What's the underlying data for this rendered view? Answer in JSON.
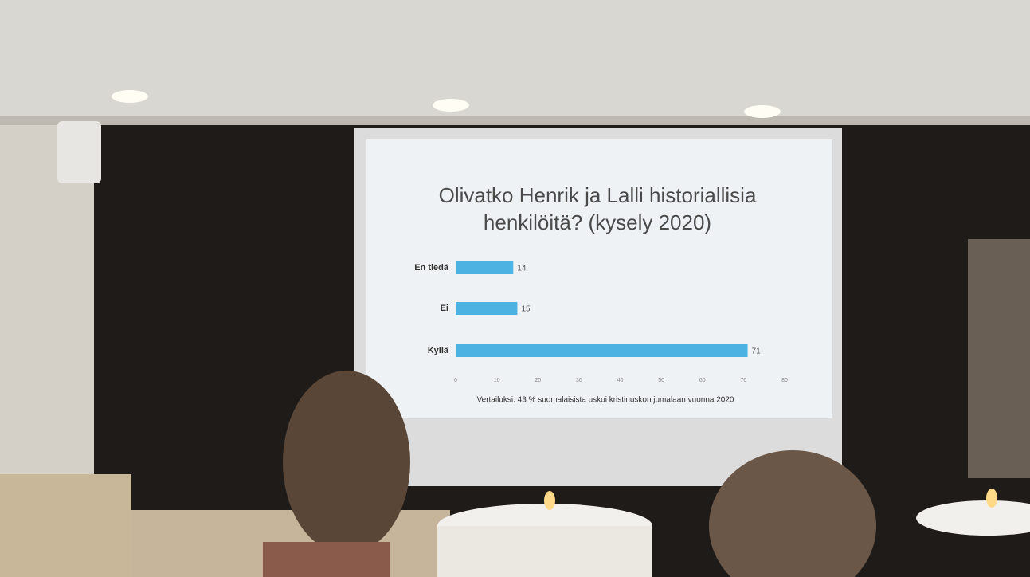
{
  "chart_data": {
    "type": "bar",
    "orientation": "horizontal",
    "title": "Olivatko Henrik ja Lalli historiallisia henkilöitä? (kysely 2020)",
    "categories": [
      "En tiedä",
      "Ei",
      "Kyllä"
    ],
    "values": [
      14,
      15,
      71
    ],
    "color": "#4cb2e2",
    "xlim": [
      0,
      80
    ],
    "xticks": [
      0,
      10,
      20,
      30,
      40,
      50,
      60,
      70,
      80
    ],
    "grid": false,
    "note": "Vertailuksi: 43 % suomalaisista uskoi kristinuskon jumalaan vuonna 2020"
  }
}
